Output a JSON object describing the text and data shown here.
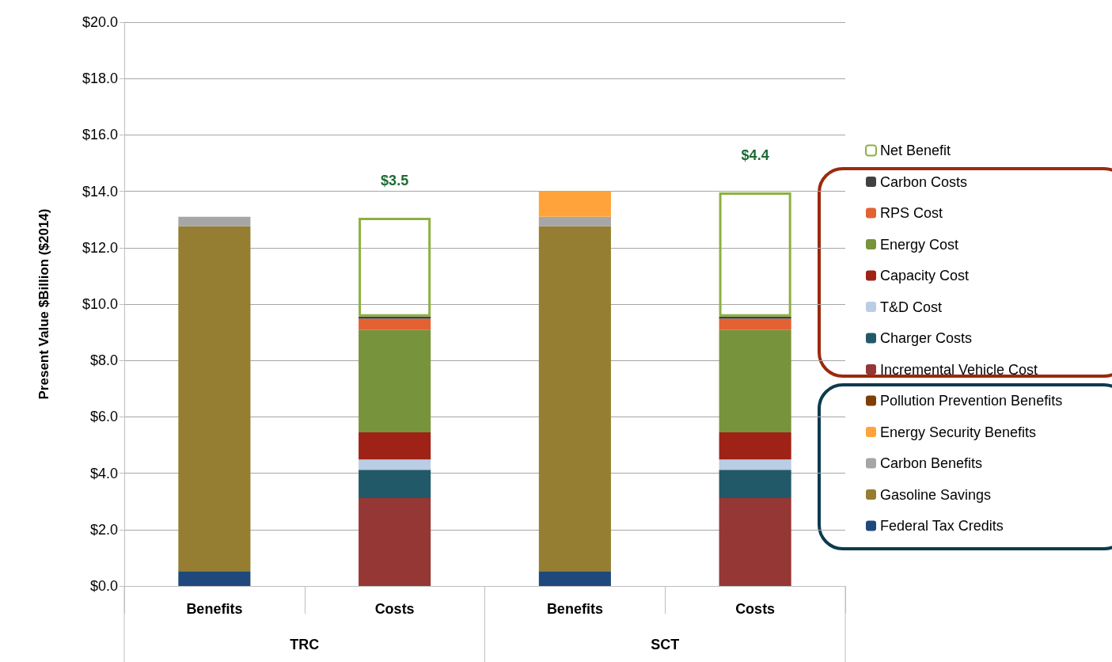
{
  "chart_data": {
    "type": "bar",
    "stacked": true,
    "ylabel": "Present Value $Billion ($2014)",
    "categories": [
      "Benefits",
      "Costs",
      "Benefits",
      "Costs"
    ],
    "annotations": [
      "TRC",
      "SCT"
    ],
    "ylim": [
      0,
      20
    ],
    "yticks": [
      {
        "value": 0,
        "label": "$0.0"
      },
      {
        "value": 2,
        "label": "$2.0"
      },
      {
        "value": 4,
        "label": "$4.0"
      },
      {
        "value": 6,
        "label": "$6.0"
      },
      {
        "value": 8,
        "label": "$8.0"
      },
      {
        "value": 10,
        "label": "$10.0"
      },
      {
        "value": 12,
        "label": "$12.0"
      },
      {
        "value": 14,
        "label": "$14.0"
      },
      {
        "value": 16,
        "label": "$16.0"
      },
      {
        "value": 18,
        "label": "$18.0"
      },
      {
        "value": 20,
        "label": "$20.0"
      }
    ],
    "grid": "y",
    "legend": "right",
    "series": [
      {
        "name": "Federal Tax Credits",
        "color": "#1f497d",
        "values": [
          0.53,
          null,
          0.53,
          null
        ]
      },
      {
        "name": "Gasoline Savings",
        "color": "#957e31",
        "values": [
          12.23,
          null,
          12.23,
          null
        ]
      },
      {
        "name": "Carbon Benefits",
        "color": "#a6a6a6",
        "values": [
          0.34,
          null,
          0.34,
          null
        ]
      },
      {
        "name": "Energy Security Benefits",
        "color": "#ffa33a",
        "values": [
          null,
          null,
          0.9,
          null
        ]
      },
      {
        "name": "Pollution Prevention Benefits",
        "color": "#7f3f00",
        "values": [
          null,
          null,
          null,
          null
        ]
      },
      {
        "name": "Incremental Vehicle Cost",
        "color": "#953735",
        "values": [
          null,
          3.12,
          null,
          3.12
        ]
      },
      {
        "name": "Charger Costs",
        "color": "#215968",
        "values": [
          null,
          1.0,
          null,
          1.0
        ]
      },
      {
        "name": "T&D Cost",
        "color": "#b9cde5",
        "values": [
          null,
          0.37,
          null,
          0.37
        ]
      },
      {
        "name": "Capacity Cost",
        "color": "#9e2216",
        "values": [
          null,
          0.96,
          null,
          0.96
        ]
      },
      {
        "name": "Energy Cost",
        "color": "#77933c",
        "values": [
          null,
          3.63,
          null,
          3.63
        ]
      },
      {
        "name": "RPS Cost",
        "color": "#e46133",
        "values": [
          null,
          0.4,
          null,
          0.4
        ]
      },
      {
        "name": "Carbon Costs",
        "color": "#404040",
        "values": [
          null,
          0.08,
          null,
          0.08
        ]
      },
      {
        "name": "Net Benefit",
        "color": "#8db042",
        "line_style": "solid",
        "values": [
          null,
          3.5,
          null,
          4.4
        ],
        "value_labels": [
          null,
          "$3.5",
          null,
          "$4.4"
        ]
      }
    ]
  }
}
